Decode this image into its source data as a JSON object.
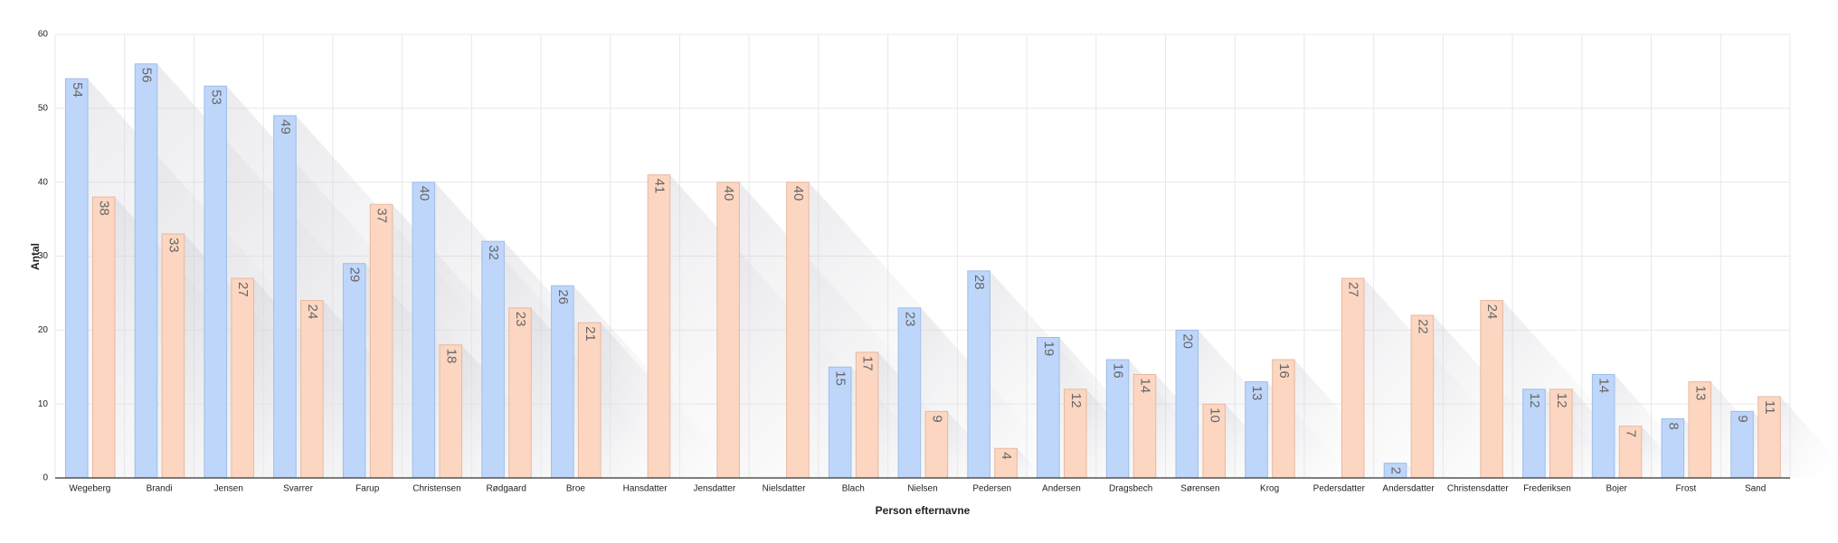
{
  "chart_data": {
    "type": "bar",
    "x_label": "Person efternavne",
    "y_label": "Antal",
    "categories": [
      "Wegeberg",
      "Brandi",
      "Jensen",
      "Svarrer",
      "Farup",
      "Christensen",
      "Rødgaard",
      "Broe",
      "Hansdatter",
      "Jensdatter",
      "Nielsdatter",
      "Blach",
      "Nielsen",
      "Pedersen",
      "Andersen",
      "Dragsbech",
      "Sørensen",
      "Krog",
      "Pedersdatter",
      "Andersdatter",
      "Christensdatter",
      "Frederiksen",
      "Bojer",
      "Frost",
      "Sand"
    ],
    "series": [
      {
        "color": "#bfd6fb",
        "values": [
          54,
          56,
          53,
          49,
          29,
          40,
          32,
          26,
          null,
          null,
          null,
          15,
          23,
          28,
          19,
          16,
          20,
          13,
          null,
          2,
          null,
          12,
          14,
          8,
          9
        ]
      },
      {
        "color": "#fcd6c1",
        "values": [
          38,
          33,
          27,
          24,
          37,
          18,
          23,
          21,
          41,
          40,
          40,
          17,
          9,
          4,
          12,
          14,
          10,
          16,
          27,
          22,
          24,
          12,
          7,
          13,
          11
        ]
      }
    ],
    "ylim": [
      0,
      60
    ],
    "yticks": [
      0,
      10,
      20,
      30,
      40,
      50,
      60
    ],
    "grid": true
  }
}
